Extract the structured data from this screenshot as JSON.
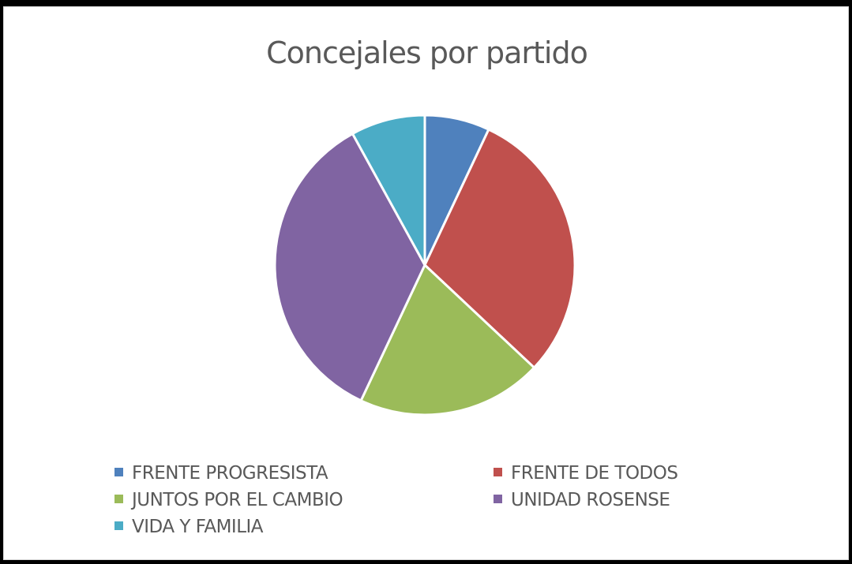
{
  "chart_data": {
    "type": "pie",
    "title": "Concejales por partido",
    "categories": [
      "FRENTE PROGRESISTA",
      "FRENTE DE TODOS",
      "JUNTOS POR EL CAMBIO",
      "UNIDAD ROSENSE",
      "VIDA Y FAMILIA"
    ],
    "values": [
      7,
      30,
      20,
      35,
      8
    ],
    "colors": [
      "#4f81bd",
      "#c0504d",
      "#9bbb59",
      "#8064a2",
      "#4bacc6"
    ],
    "legend": "bottom"
  }
}
